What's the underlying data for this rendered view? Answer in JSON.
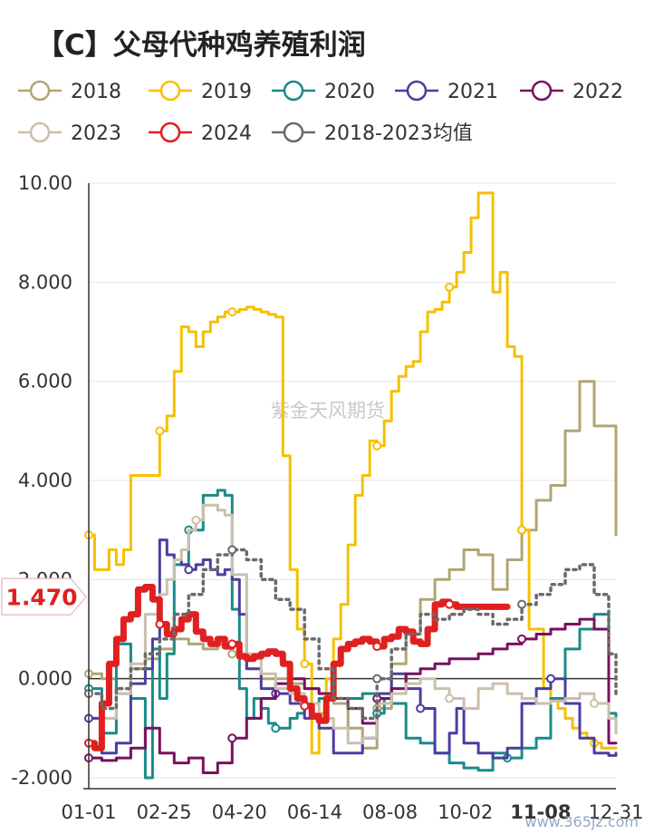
{
  "chart_data": {
    "type": "line",
    "title": "【C】父母代种鸡养殖利润",
    "x_tick_labels": [
      "01-01",
      "02-25",
      "04-20",
      "06-14",
      "08-08",
      "10-02",
      "11-08",
      "12-31"
    ],
    "ylim": [
      -2,
      10
    ],
    "y_tick_labels": [
      "10.00",
      "8.000",
      "6.000",
      "4.000",
      "2.000",
      "0.000",
      "-2.000"
    ],
    "y_ticks": [
      10,
      8,
      6,
      4,
      2,
      0,
      -2
    ],
    "current_marker": {
      "label": "1.470",
      "value": 1.47,
      "color": "#e02020"
    },
    "x_highlight": {
      "label": "11-08",
      "color": "#e02020"
    },
    "watermark": "紫金天风期货",
    "source": "www.365jz.com",
    "series": [
      {
        "name": "2018",
        "color": "#b0a673",
        "width": 3,
        "dashed": false,
        "x": [
          1,
          10,
          20,
          30,
          40,
          50,
          60,
          70,
          80,
          90,
          100,
          110,
          120,
          130,
          140,
          150,
          160,
          170,
          180,
          190,
          200,
          210,
          220,
          230,
          240,
          250,
          260,
          270,
          280,
          290,
          300,
          310,
          320,
          330,
          340,
          350,
          365
        ],
        "y": [
          0.1,
          0.0,
          -0.3,
          0.2,
          0.4,
          0.6,
          0.8,
          0.7,
          0.6,
          0.7,
          0.5,
          0.2,
          0.0,
          0.0,
          -0.1,
          -0.2,
          -0.3,
          -0.5,
          -1.0,
          -1.4,
          -0.6,
          0.3,
          0.9,
          1.6,
          2.0,
          2.2,
          2.6,
          2.5,
          1.8,
          2.4,
          3.0,
          3.6,
          3.9,
          5.0,
          6.0,
          5.1,
          2.9
        ]
      },
      {
        "name": "2019",
        "color": "#f5c000",
        "width": 3,
        "dashed": false,
        "x": [
          1,
          5,
          10,
          15,
          20,
          25,
          30,
          35,
          40,
          45,
          50,
          55,
          60,
          65,
          70,
          75,
          80,
          85,
          90,
          95,
          100,
          105,
          110,
          115,
          120,
          125,
          130,
          135,
          140,
          145,
          150,
          155,
          160,
          165,
          170,
          175,
          180,
          185,
          190,
          195,
          200,
          205,
          210,
          215,
          220,
          225,
          230,
          235,
          240,
          245,
          250,
          255,
          260,
          265,
          270,
          275,
          280,
          285,
          290,
          295,
          300,
          305,
          310,
          315,
          320,
          325,
          330,
          335,
          340,
          345,
          350,
          355,
          360,
          365
        ],
        "y": [
          2.9,
          2.2,
          2.2,
          2.6,
          2.3,
          2.6,
          4.1,
          4.1,
          4.1,
          4.1,
          5.0,
          5.3,
          6.2,
          7.1,
          7.0,
          6.7,
          7.0,
          7.2,
          7.3,
          7.4,
          7.4,
          7.45,
          7.5,
          7.45,
          7.4,
          7.35,
          7.3,
          4.5,
          2.2,
          1.0,
          0.3,
          -1.5,
          -0.7,
          0.0,
          0.8,
          1.5,
          2.7,
          3.7,
          4.1,
          4.8,
          4.7,
          5.2,
          5.8,
          6.1,
          6.3,
          6.4,
          7.0,
          7.4,
          7.45,
          7.6,
          7.9,
          8.2,
          8.6,
          9.3,
          9.8,
          9.8,
          7.8,
          8.2,
          6.7,
          6.5,
          3.0,
          1.0,
          1.0,
          -0.2,
          -0.4,
          -0.6,
          -0.8,
          -1.0,
          -1.1,
          -1.2,
          -1.3,
          -1.4,
          -1.4,
          -1.4
        ]
      },
      {
        "name": "2020",
        "color": "#1a8a8a",
        "width": 3,
        "dashed": false,
        "x": [
          1,
          10,
          20,
          25,
          30,
          40,
          45,
          50,
          55,
          60,
          70,
          80,
          90,
          95,
          100,
          105,
          110,
          115,
          120,
          125,
          130,
          135,
          140,
          145,
          150,
          155,
          160,
          170,
          180,
          190,
          200,
          205,
          210,
          220,
          230,
          240,
          250,
          260,
          270,
          280,
          290,
          300,
          310,
          320,
          330,
          340,
          350,
          360,
          365
        ],
        "y": [
          -0.2,
          -1.1,
          0.7,
          0.7,
          -0.4,
          -2.0,
          0.6,
          -0.4,
          0.5,
          2.3,
          3.0,
          3.7,
          3.8,
          3.7,
          1.4,
          -0.2,
          -0.8,
          -0.4,
          -0.6,
          -0.9,
          -1.0,
          -1.0,
          -0.8,
          -0.7,
          -0.5,
          -0.5,
          -0.4,
          -0.4,
          -0.4,
          -0.3,
          -0.7,
          -0.4,
          -0.5,
          -1.2,
          -1.3,
          -1.5,
          -1.7,
          -1.8,
          -1.85,
          -1.5,
          -1.6,
          -1.4,
          -1.2,
          -0.4,
          0.6,
          1.0,
          1.3,
          -0.7,
          -0.8
        ]
      },
      {
        "name": "2021",
        "color": "#4b3ea0",
        "width": 3,
        "dashed": false,
        "x": [
          1,
          10,
          20,
          30,
          40,
          45,
          50,
          55,
          60,
          65,
          70,
          75,
          80,
          85,
          90,
          95,
          100,
          105,
          110,
          120,
          130,
          140,
          150,
          160,
          170,
          180,
          190,
          200,
          210,
          220,
          230,
          240,
          250,
          255,
          260,
          270,
          280,
          290,
          300,
          310,
          320,
          330,
          340,
          350,
          360,
          365
        ],
        "y": [
          -0.8,
          -1.5,
          -1.3,
          -0.1,
          0.2,
          0.8,
          2.8,
          2.5,
          2.4,
          2.3,
          2.2,
          2.3,
          2.4,
          2.2,
          2.1,
          2.2,
          2.0,
          1.3,
          0.2,
          -0.2,
          -0.3,
          -0.5,
          -0.8,
          -1.0,
          -1.5,
          -1.5,
          -1.2,
          -0.3,
          0.1,
          -0.2,
          -0.6,
          -1.5,
          -1.1,
          -0.6,
          -1.3,
          -1.5,
          -1.6,
          -1.4,
          -0.5,
          -0.2,
          0.0,
          -0.5,
          -1.2,
          -1.5,
          -1.55,
          -1.5
        ]
      },
      {
        "name": "2022",
        "color": "#7a1060",
        "width": 3,
        "dashed": false,
        "x": [
          1,
          10,
          20,
          30,
          40,
          50,
          60,
          70,
          80,
          90,
          100,
          110,
          120,
          130,
          140,
          150,
          160,
          170,
          180,
          190,
          200,
          210,
          220,
          230,
          240,
          250,
          260,
          270,
          280,
          290,
          300,
          310,
          320,
          330,
          340,
          350,
          360,
          365
        ],
        "y": [
          -1.6,
          -1.65,
          -1.6,
          -1.4,
          -1.0,
          -1.5,
          -1.7,
          -1.6,
          -1.9,
          -1.7,
          -1.2,
          -0.8,
          -0.4,
          -0.1,
          0.0,
          -0.2,
          -0.3,
          -0.4,
          -0.6,
          -0.9,
          -0.4,
          -0.2,
          0.1,
          0.2,
          0.3,
          0.4,
          0.4,
          0.5,
          0.6,
          0.7,
          0.8,
          0.9,
          1.0,
          1.1,
          1.2,
          1.0,
          -1.3,
          -1.3
        ]
      },
      {
        "name": "2023",
        "color": "#cbbfae",
        "width": 3,
        "dashed": false,
        "x": [
          1,
          10,
          20,
          30,
          40,
          50,
          55,
          60,
          65,
          70,
          75,
          80,
          85,
          90,
          95,
          100,
          110,
          120,
          130,
          140,
          150,
          160,
          170,
          180,
          190,
          200,
          210,
          220,
          230,
          240,
          250,
          260,
          270,
          280,
          290,
          300,
          310,
          320,
          330,
          340,
          350,
          360,
          365
        ],
        "y": [
          -1.3,
          -0.8,
          -0.3,
          0.3,
          1.3,
          1.7,
          2.0,
          2.4,
          2.6,
          3.0,
          3.2,
          3.5,
          3.5,
          3.4,
          3.3,
          2.1,
          0.5,
          0.1,
          -0.2,
          -0.3,
          -0.5,
          -0.8,
          -1.0,
          -1.3,
          -1.2,
          -0.5,
          -0.3,
          -0.1,
          0.0,
          -0.2,
          -0.4,
          -0.6,
          -0.2,
          -0.1,
          -0.3,
          -0.4,
          -0.5,
          -0.45,
          -0.4,
          -0.3,
          -0.5,
          -0.8,
          -1.1
        ]
      },
      {
        "name": "2024",
        "color": "#e02020",
        "width": 7,
        "dashed": false,
        "x": [
          1,
          5,
          10,
          15,
          20,
          25,
          30,
          35,
          40,
          45,
          50,
          55,
          60,
          65,
          70,
          75,
          80,
          85,
          90,
          95,
          100,
          105,
          110,
          115,
          120,
          125,
          130,
          135,
          140,
          145,
          150,
          155,
          160,
          165,
          170,
          175,
          180,
          185,
          190,
          195,
          200,
          205,
          210,
          215,
          220,
          225,
          230,
          235,
          240,
          245,
          250,
          255,
          260,
          265,
          270,
          275,
          280,
          285,
          290
        ],
        "y": [
          -1.3,
          -1.4,
          -0.5,
          0.3,
          0.8,
          1.2,
          1.3,
          1.8,
          1.85,
          1.6,
          1.1,
          0.9,
          1.0,
          1.2,
          1.3,
          0.95,
          0.8,
          0.7,
          0.8,
          0.65,
          0.7,
          0.45,
          0.4,
          0.45,
          0.5,
          0.55,
          0.5,
          0.3,
          -0.2,
          -0.4,
          -0.55,
          -0.75,
          -0.85,
          -0.4,
          0.3,
          0.6,
          0.7,
          0.75,
          0.8,
          0.75,
          0.65,
          0.8,
          0.85,
          1.0,
          0.95,
          0.75,
          0.7,
          1.0,
          1.5,
          1.55,
          1.5,
          1.45,
          1.45,
          1.45,
          1.45,
          1.45,
          1.45,
          1.45,
          1.45
        ]
      },
      {
        "name": "2018-2023均值",
        "color": "#6a6a6a",
        "width": 3.5,
        "dashed": true,
        "x": [
          1,
          10,
          20,
          30,
          40,
          50,
          60,
          70,
          80,
          90,
          100,
          110,
          120,
          130,
          140,
          150,
          160,
          170,
          180,
          190,
          200,
          210,
          220,
          230,
          240,
          250,
          260,
          270,
          280,
          290,
          300,
          310,
          320,
          330,
          340,
          350,
          360,
          365
        ],
        "y": [
          -0.3,
          -0.6,
          -0.2,
          0.2,
          0.5,
          0.8,
          1.3,
          1.7,
          2.2,
          2.5,
          2.6,
          2.4,
          2.0,
          1.6,
          1.4,
          0.8,
          0.2,
          -0.4,
          -0.6,
          -0.8,
          0.0,
          0.6,
          0.9,
          1.3,
          1.2,
          1.3,
          1.4,
          1.3,
          1.1,
          1.2,
          1.5,
          1.7,
          1.9,
          2.2,
          2.3,
          1.7,
          0.5,
          -0.3
        ]
      }
    ]
  }
}
